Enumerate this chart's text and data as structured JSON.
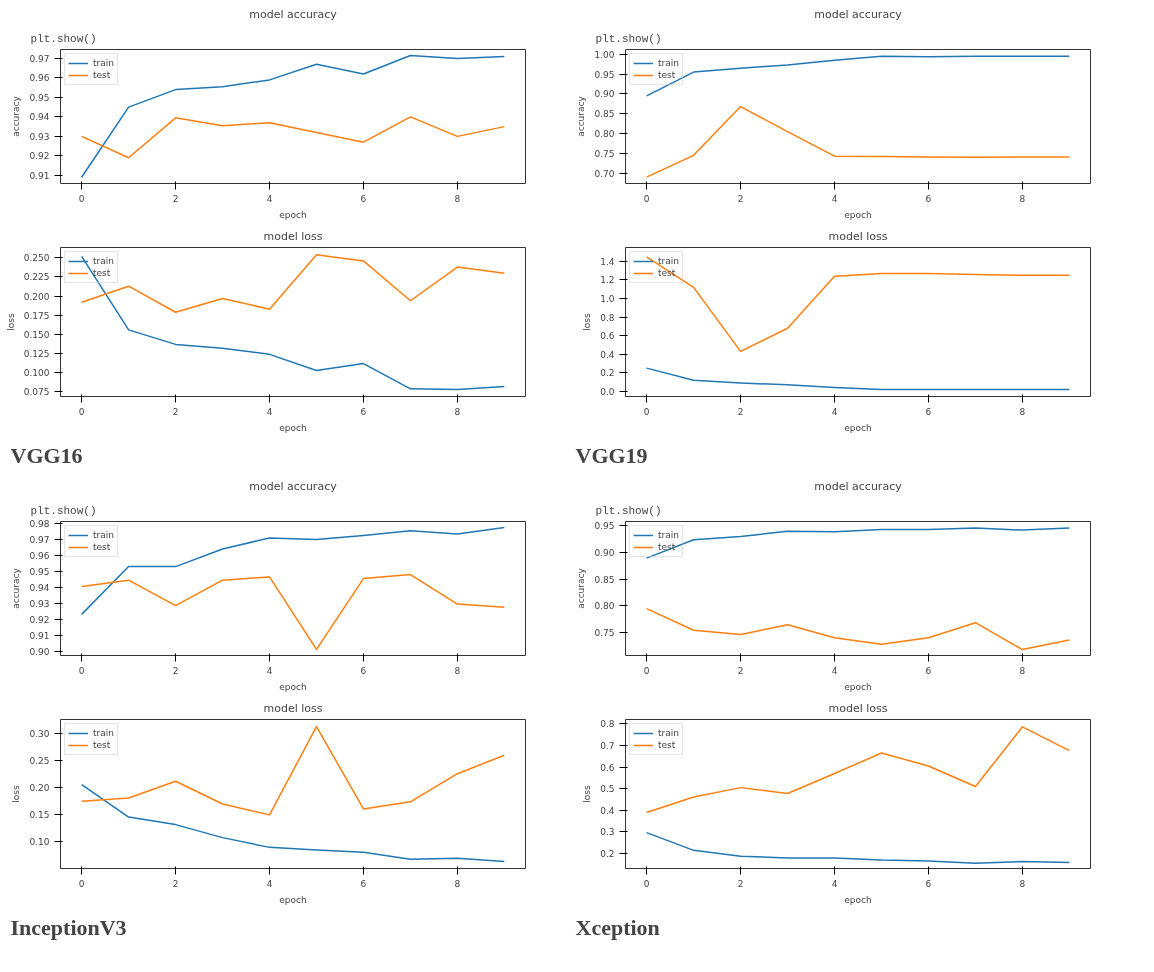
{
  "chart_data": [
    {
      "type": "line",
      "title": "model accuracy",
      "xlabel": "epoch",
      "ylabel": "accuracy",
      "annotations": [
        "plt.show()"
      ],
      "x": [
        0,
        1,
        2,
        3,
        4,
        5,
        6,
        7,
        8,
        9
      ],
      "xlim": [
        -0.45,
        9.45
      ],
      "xticks": [
        0,
        2,
        4,
        6,
        8
      ],
      "ylim": [
        0.9058,
        0.9746
      ],
      "yticks": [
        0.91,
        0.92,
        0.93,
        0.94,
        0.95,
        0.96,
        0.97
      ],
      "legend": "top left",
      "grid": false,
      "series": [
        {
          "name": "train",
          "color": "#1f77b4",
          "values": [
            0.909,
            0.945,
            0.954,
            0.9555,
            0.959,
            0.967,
            0.962,
            0.9715,
            0.97,
            0.971
          ]
        },
        {
          "name": "test",
          "color": "#ff7f0e",
          "values": [
            0.93,
            0.919,
            0.9395,
            0.9355,
            0.937,
            0.932,
            0.927,
            0.94,
            0.93,
            0.935
          ]
        }
      ]
    },
    {
      "type": "line",
      "title": "model loss",
      "xlabel": "epoch",
      "ylabel": "loss",
      "annotations": [
        "VGG16"
      ],
      "x": [
        0,
        1,
        2,
        3,
        4,
        5,
        6,
        7,
        8,
        9
      ],
      "xlim": [
        -0.45,
        9.45
      ],
      "xticks": [
        0,
        2,
        4,
        6,
        8
      ],
      "ylim": [
        0.069,
        0.2635
      ],
      "yticks": [
        {
          "value": 0.075,
          "label": "0.075"
        },
        {
          "value": 0.1,
          "label": "0.100"
        },
        {
          "value": 0.125,
          "label": "0.125"
        },
        {
          "value": 0.15,
          "label": "0.150"
        },
        {
          "value": 0.175,
          "label": "0.175"
        },
        {
          "value": 0.2,
          "label": "0.200"
        },
        {
          "value": 0.225,
          "label": "0.225"
        },
        {
          "value": 0.25,
          "label": "0.250"
        }
      ],
      "legend": "top left",
      "grid": false,
      "series": [
        {
          "name": "train",
          "color": "#1f77b4",
          "values": [
            0.252,
            0.156,
            0.137,
            0.132,
            0.124,
            0.103,
            0.112,
            0.079,
            0.078,
            0.082
          ]
        },
        {
          "name": "test",
          "color": "#ff7f0e",
          "values": [
            0.192,
            0.213,
            0.179,
            0.197,
            0.183,
            0.254,
            0.246,
            0.194,
            0.238,
            0.23
          ]
        }
      ]
    },
    {
      "type": "line",
      "title": "model accuracy",
      "xlabel": "epoch",
      "ylabel": "accuracy",
      "annotations": [
        "plt.show()"
      ],
      "x": [
        0,
        1,
        2,
        3,
        4,
        5,
        6,
        7,
        8,
        9
      ],
      "xlim": [
        -0.45,
        9.45
      ],
      "xticks": [
        0,
        2,
        4,
        6,
        8
      ],
      "ylim": [
        0.674,
        1.012
      ],
      "yticks": [
        {
          "value": 0.7,
          "label": "0.70"
        },
        0.75,
        {
          "value": 0.8,
          "label": "0.80"
        },
        0.85,
        {
          "value": 0.9,
          "label": "0.90"
        },
        0.95,
        {
          "value": 1.0,
          "label": "1.00"
        }
      ],
      "legend": "top left",
      "grid": false,
      "series": [
        {
          "name": "train",
          "color": "#1f77b4",
          "values": [
            0.895,
            0.955,
            0.965,
            0.973,
            0.985,
            0.995,
            0.994,
            0.995,
            0.995,
            0.995
          ]
        },
        {
          "name": "test",
          "color": "#ff7f0e",
          "values": [
            0.69,
            0.745,
            0.868,
            0.805,
            0.743,
            0.742,
            0.741,
            0.74,
            0.741,
            0.741
          ]
        }
      ]
    },
    {
      "type": "line",
      "title": "model loss",
      "xlabel": "epoch",
      "ylabel": "loss",
      "annotations": [
        "VGG19"
      ],
      "x": [
        0,
        1,
        2,
        3,
        4,
        5,
        6,
        7,
        8,
        9
      ],
      "xlim": [
        -0.45,
        9.45
      ],
      "xticks": [
        0,
        2,
        4,
        6,
        8
      ],
      "ylim": [
        -0.056,
        1.55
      ],
      "yticks": [
        {
          "value": 0,
          "label": "0.0"
        },
        0.2,
        0.4,
        0.6,
        0.8,
        {
          "value": 1,
          "label": "1.0"
        },
        1.2,
        1.4
      ],
      "legend": "top left",
      "grid": false,
      "series": [
        {
          "name": "train",
          "color": "#1f77b4",
          "values": [
            0.25,
            0.12,
            0.09,
            0.07,
            0.04,
            0.02,
            0.02,
            0.02,
            0.02,
            0.02
          ]
        },
        {
          "name": "test",
          "color": "#ff7f0e",
          "values": [
            1.45,
            1.12,
            0.43,
            0.68,
            1.24,
            1.27,
            1.27,
            1.26,
            1.25,
            1.25
          ]
        }
      ]
    },
    {
      "type": "line",
      "title": "model accuracy",
      "xlabel": "epoch",
      "ylabel": "accuracy",
      "annotations": [
        "plt.show()"
      ],
      "x": [
        0,
        1,
        2,
        3,
        4,
        5,
        6,
        7,
        8,
        9
      ],
      "xlim": [
        -0.45,
        9.45
      ],
      "xticks": [
        0,
        2,
        4,
        6,
        8
      ],
      "ylim": [
        0.8972,
        0.9813
      ],
      "yticks": [
        {
          "value": 0.9,
          "label": "0.90"
        },
        0.91,
        0.92,
        0.93,
        0.94,
        0.95,
        0.96,
        0.97,
        0.98
      ],
      "legend": "top left",
      "grid": false,
      "series": [
        {
          "name": "train",
          "color": "#1f77b4",
          "values": [
            0.923,
            0.953,
            0.953,
            0.964,
            0.971,
            0.97,
            0.9725,
            0.9755,
            0.9735,
            0.9775
          ]
        },
        {
          "name": "test",
          "color": "#ff7f0e",
          "values": [
            0.9405,
            0.9445,
            0.9285,
            0.9445,
            0.9465,
            0.901,
            0.9455,
            0.948,
            0.9295,
            0.9275
          ]
        }
      ]
    },
    {
      "type": "line",
      "title": "model loss",
      "xlabel": "epoch",
      "ylabel": "loss",
      "annotations": [
        "InceptionV3"
      ],
      "x": [
        0,
        1,
        2,
        3,
        4,
        5,
        6,
        7,
        8,
        9
      ],
      "xlim": [
        -0.45,
        9.45
      ],
      "xticks": [
        0,
        2,
        4,
        6,
        8
      ],
      "ylim": [
        0.051,
        0.326
      ],
      "yticks": [
        {
          "value": 0.1,
          "label": "0.10"
        },
        0.15,
        {
          "value": 0.2,
          "label": "0.20"
        },
        0.25,
        {
          "value": 0.3,
          "label": "0.30"
        }
      ],
      "legend": "top left",
      "grid": false,
      "series": [
        {
          "name": "train",
          "color": "#1f77b4",
          "values": [
            0.206,
            0.146,
            0.132,
            0.108,
            0.09,
            0.085,
            0.081,
            0.068,
            0.07,
            0.064
          ]
        },
        {
          "name": "test",
          "color": "#ff7f0e",
          "values": [
            0.175,
            0.181,
            0.212,
            0.17,
            0.15,
            0.313,
            0.161,
            0.174,
            0.226,
            0.26
          ]
        }
      ]
    },
    {
      "type": "line",
      "title": "model accuracy",
      "xlabel": "epoch",
      "ylabel": "accuracy",
      "annotations": [
        "plt.show()"
      ],
      "x": [
        0,
        1,
        2,
        3,
        4,
        5,
        6,
        7,
        8,
        9
      ],
      "xlim": [
        -0.45,
        9.45
      ],
      "xticks": [
        0,
        2,
        4,
        6,
        8
      ],
      "ylim": [
        0.708,
        0.957
      ],
      "yticks": [
        0.75,
        {
          "value": 0.8,
          "label": "0.80"
        },
        0.85,
        {
          "value": 0.9,
          "label": "0.90"
        },
        0.95
      ],
      "legend": "top left",
      "grid": false,
      "series": [
        {
          "name": "train",
          "color": "#1f77b4",
          "values": [
            0.889,
            0.923,
            0.929,
            0.939,
            0.938,
            0.942,
            0.942,
            0.945,
            0.941,
            0.945
          ]
        },
        {
          "name": "test",
          "color": "#ff7f0e",
          "values": [
            0.795,
            0.755,
            0.747,
            0.765,
            0.741,
            0.729,
            0.741,
            0.769,
            0.719,
            0.737
          ]
        }
      ]
    },
    {
      "type": "line",
      "title": "model loss",
      "xlabel": "epoch",
      "ylabel": "loss",
      "annotations": [
        "Xception"
      ],
      "x": [
        0,
        1,
        2,
        3,
        4,
        5,
        6,
        7,
        8,
        9
      ],
      "xlim": [
        -0.45,
        9.45
      ],
      "xticks": [
        0,
        2,
        4,
        6,
        8
      ],
      "ylim": [
        0.131,
        0.82
      ],
      "yticks": [
        0.2,
        0.3,
        0.4,
        0.5,
        0.6,
        0.7,
        0.8
      ],
      "legend": "top left",
      "grid": false,
      "series": [
        {
          "name": "train",
          "color": "#1f77b4",
          "values": [
            0.297,
            0.215,
            0.188,
            0.18,
            0.18,
            0.17,
            0.166,
            0.155,
            0.163,
            0.159
          ]
        },
        {
          "name": "test",
          "color": "#ff7f0e",
          "values": [
            0.39,
            0.462,
            0.505,
            0.478,
            0.57,
            0.665,
            0.605,
            0.51,
            0.786,
            0.676
          ]
        }
      ]
    }
  ]
}
